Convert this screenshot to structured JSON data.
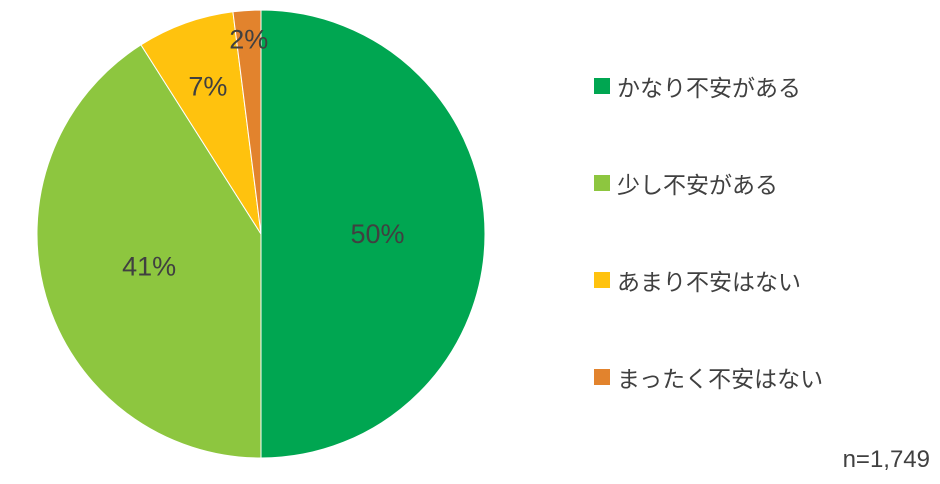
{
  "chart_data": {
    "type": "pie",
    "title": "",
    "categories": [
      "かなり不安がある",
      "少し不安がある",
      "あまり不安はない",
      "まったく不安はない"
    ],
    "values": [
      50,
      41,
      7,
      2
    ],
    "labels": [
      "50%",
      "41%",
      "7%",
      "2%"
    ],
    "colors": [
      "#00A651",
      "#8DC63F",
      "#FFC20E",
      "#E2832D"
    ],
    "legend_position": "right",
    "start_angle_deg": 0,
    "direction": "clockwise",
    "sample_note": "n=1,749"
  }
}
